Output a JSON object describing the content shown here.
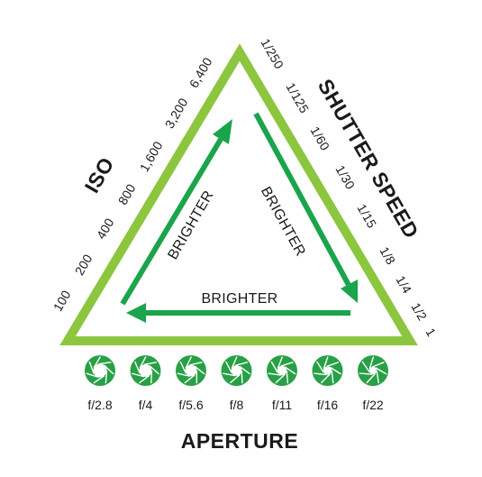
{
  "colors": {
    "triangle_outline": "#8cc63f",
    "arrow": "#1aa44c",
    "aperture_icon": "#28a046",
    "text": "#1a1a1a",
    "background": "#ffffff"
  },
  "iso": {
    "title": "ISO",
    "values": [
      "100",
      "200",
      "400",
      "800",
      "1,600",
      "3,200",
      "6,400"
    ]
  },
  "shutter_speed": {
    "title": "SHUTTER SPEED",
    "values": [
      "1/250",
      "1/125",
      "1/60",
      "1/30",
      "1/15",
      "1/8",
      "1/4",
      "1/2",
      "1"
    ]
  },
  "arrows": {
    "left_label": "BRIGHTER",
    "right_label": "BRIGHTER",
    "bottom_label": "BRIGHTER"
  },
  "aperture": {
    "title": "APERTURE",
    "icon_name": "aperture-icon",
    "stops": [
      {
        "label": "f/2.8",
        "opening": 0.9
      },
      {
        "label": "f/4",
        "opening": 0.78
      },
      {
        "label": "f/5.6",
        "opening": 0.66
      },
      {
        "label": "f/8",
        "opening": 0.54
      },
      {
        "label": "f/11",
        "opening": 0.42
      },
      {
        "label": "f/16",
        "opening": 0.3
      },
      {
        "label": "f/22",
        "opening": 0.18
      }
    ]
  }
}
